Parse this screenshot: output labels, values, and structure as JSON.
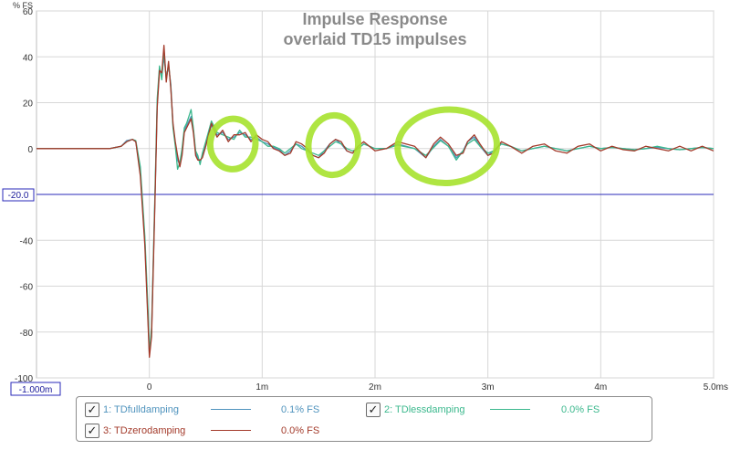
{
  "chart_data": {
    "type": "line",
    "title": "Impulse Response",
    "subtitle": "overlaid TD15 impulses",
    "ylabel": "% FS",
    "xlim": [
      -1.0,
      5.0
    ],
    "ylim": [
      -100,
      60
    ],
    "y_ticks": [
      "60",
      "40",
      "20",
      "0",
      "-20",
      "-40",
      "-60",
      "-80",
      "-100"
    ],
    "x_ticks": [
      "0",
      "1m",
      "2m",
      "3m",
      "4m",
      "5.0ms"
    ],
    "x_start_label": "-1.000m",
    "cursor_y_label": "-20.0",
    "cursor_y_value": -20,
    "grid": true,
    "legend_position": "bottom",
    "series": [
      {
        "name": "1: TDfulldamping",
        "value_label": "0.1% FS",
        "color": "#4f93bd",
        "points": [
          [
            -1.0,
            0
          ],
          [
            -0.35,
            0
          ],
          [
            -0.25,
            1
          ],
          [
            -0.2,
            3.5
          ],
          [
            -0.15,
            4
          ],
          [
            -0.12,
            3
          ],
          [
            -0.08,
            -10
          ],
          [
            -0.04,
            -40
          ],
          [
            -0.01,
            -75
          ],
          [
            0.0,
            -90
          ],
          [
            0.02,
            -80
          ],
          [
            0.05,
            -20
          ],
          [
            0.07,
            20
          ],
          [
            0.09,
            35
          ],
          [
            0.11,
            32
          ],
          [
            0.13,
            40
          ],
          [
            0.15,
            31
          ],
          [
            0.17,
            36
          ],
          [
            0.19,
            28
          ],
          [
            0.21,
            10
          ],
          [
            0.23,
            2
          ],
          [
            0.25,
            -5
          ],
          [
            0.27,
            -7
          ],
          [
            0.29,
            -2
          ],
          [
            0.31,
            8
          ],
          [
            0.33,
            10
          ],
          [
            0.35,
            12
          ],
          [
            0.37,
            14
          ],
          [
            0.39,
            8
          ],
          [
            0.41,
            -2
          ],
          [
            0.43,
            -4
          ],
          [
            0.45,
            -6
          ],
          [
            0.47,
            -3
          ],
          [
            0.5,
            2
          ],
          [
            0.55,
            10
          ],
          [
            0.6,
            6
          ],
          [
            0.65,
            7
          ],
          [
            0.7,
            4
          ],
          [
            0.75,
            5
          ],
          [
            0.8,
            7
          ],
          [
            0.85,
            6
          ],
          [
            0.9,
            4
          ],
          [
            0.95,
            5
          ],
          [
            1.0,
            3
          ],
          [
            1.05,
            2
          ],
          [
            1.1,
            0.5
          ],
          [
            1.15,
            -0.5
          ],
          [
            1.2,
            -3
          ],
          [
            1.25,
            -1
          ],
          [
            1.3,
            2
          ],
          [
            1.35,
            1
          ],
          [
            1.4,
            -1
          ],
          [
            1.45,
            -3
          ],
          [
            1.5,
            -4
          ],
          [
            1.55,
            -1
          ],
          [
            1.6,
            2
          ],
          [
            1.65,
            4
          ],
          [
            1.7,
            2
          ],
          [
            1.75,
            -1
          ],
          [
            1.8,
            -2
          ],
          [
            1.85,
            0
          ],
          [
            1.9,
            2
          ],
          [
            1.95,
            1
          ],
          [
            2.0,
            0
          ],
          [
            2.1,
            0
          ],
          [
            2.2,
            2
          ],
          [
            2.35,
            0
          ],
          [
            2.45,
            -4
          ],
          [
            2.52,
            1
          ],
          [
            2.58,
            4
          ],
          [
            2.65,
            1
          ],
          [
            2.72,
            -4
          ],
          [
            2.78,
            -1
          ],
          [
            2.82,
            3
          ],
          [
            2.88,
            5
          ],
          [
            2.93,
            1
          ],
          [
            3.0,
            -3
          ],
          [
            3.05,
            -1
          ],
          [
            3.12,
            2
          ],
          [
            3.2,
            1
          ],
          [
            3.3,
            -1
          ],
          [
            3.4,
            0
          ],
          [
            3.5,
            1
          ],
          [
            3.6,
            0
          ],
          [
            3.7,
            -1
          ],
          [
            3.8,
            0
          ],
          [
            3.9,
            1
          ],
          [
            4.0,
            0
          ],
          [
            4.1,
            0.5
          ],
          [
            4.2,
            0
          ],
          [
            4.3,
            -0.5
          ],
          [
            4.4,
            0
          ],
          [
            4.5,
            0.5
          ],
          [
            4.6,
            0
          ],
          [
            4.7,
            -0.5
          ],
          [
            4.8,
            0
          ],
          [
            4.9,
            0.5
          ],
          [
            5.0,
            0
          ]
        ]
      },
      {
        "name": "2: TDlessdamping",
        "value_label": "0.0% FS",
        "color": "#3bb88d",
        "points": [
          [
            -1.0,
            0
          ],
          [
            -0.35,
            0
          ],
          [
            -0.25,
            1
          ],
          [
            -0.2,
            3
          ],
          [
            -0.15,
            4
          ],
          [
            -0.12,
            3.5
          ],
          [
            -0.08,
            -8
          ],
          [
            -0.04,
            -38
          ],
          [
            -0.01,
            -72
          ],
          [
            0.0,
            -89
          ],
          [
            0.02,
            -78
          ],
          [
            0.05,
            -18
          ],
          [
            0.07,
            22
          ],
          [
            0.09,
            36
          ],
          [
            0.11,
            30
          ],
          [
            0.13,
            43
          ],
          [
            0.15,
            30
          ],
          [
            0.17,
            37
          ],
          [
            0.19,
            27
          ],
          [
            0.21,
            9
          ],
          [
            0.23,
            1
          ],
          [
            0.25,
            -9
          ],
          [
            0.27,
            -6
          ],
          [
            0.29,
            0
          ],
          [
            0.31,
            9
          ],
          [
            0.33,
            11
          ],
          [
            0.35,
            14
          ],
          [
            0.37,
            17
          ],
          [
            0.39,
            9
          ],
          [
            0.41,
            -1
          ],
          [
            0.43,
            -3
          ],
          [
            0.45,
            -7
          ],
          [
            0.47,
            -2
          ],
          [
            0.5,
            3
          ],
          [
            0.55,
            12
          ],
          [
            0.6,
            7
          ],
          [
            0.65,
            6
          ],
          [
            0.7,
            5
          ],
          [
            0.75,
            4
          ],
          [
            0.8,
            8
          ],
          [
            0.85,
            5
          ],
          [
            0.9,
            5
          ],
          [
            0.95,
            4
          ],
          [
            1.0,
            3
          ],
          [
            1.05,
            1
          ],
          [
            1.1,
            1
          ],
          [
            1.15,
            0
          ],
          [
            1.2,
            -2
          ],
          [
            1.25,
            0
          ],
          [
            1.3,
            2
          ],
          [
            1.35,
            0
          ],
          [
            1.4,
            -1
          ],
          [
            1.45,
            -2
          ],
          [
            1.5,
            -3
          ],
          [
            1.55,
            -1
          ],
          [
            1.6,
            1
          ],
          [
            1.65,
            3
          ],
          [
            1.7,
            2
          ],
          [
            1.75,
            0
          ],
          [
            1.8,
            -1
          ],
          [
            1.85,
            0
          ],
          [
            1.9,
            2
          ],
          [
            1.95,
            1
          ],
          [
            2.0,
            0
          ],
          [
            2.1,
            0
          ],
          [
            2.2,
            1.5
          ],
          [
            2.35,
            0
          ],
          [
            2.45,
            -3
          ],
          [
            2.52,
            0.5
          ],
          [
            2.58,
            3.5
          ],
          [
            2.65,
            1
          ],
          [
            2.72,
            -5
          ],
          [
            2.78,
            -1
          ],
          [
            2.82,
            2
          ],
          [
            2.88,
            4
          ],
          [
            2.93,
            1
          ],
          [
            3.0,
            -2
          ],
          [
            3.05,
            -1
          ],
          [
            3.12,
            2
          ],
          [
            3.2,
            1
          ],
          [
            3.3,
            -1
          ],
          [
            3.4,
            0
          ],
          [
            3.5,
            1
          ],
          [
            3.6,
            0
          ],
          [
            3.7,
            -1
          ],
          [
            3.8,
            0
          ],
          [
            3.9,
            1
          ],
          [
            4.0,
            0
          ],
          [
            4.1,
            0.5
          ],
          [
            4.2,
            0
          ],
          [
            4.3,
            -0.5
          ],
          [
            4.4,
            0
          ],
          [
            4.5,
            1
          ],
          [
            4.6,
            0
          ],
          [
            4.7,
            -0.5
          ],
          [
            4.8,
            0
          ],
          [
            4.9,
            0.5
          ],
          [
            5.0,
            0
          ]
        ]
      },
      {
        "name": "3: TDzerodamping",
        "value_label": "0.0% FS",
        "color": "#a33a2a",
        "points": [
          [
            -1.0,
            0
          ],
          [
            -0.35,
            0
          ],
          [
            -0.25,
            1
          ],
          [
            -0.2,
            3
          ],
          [
            -0.15,
            4
          ],
          [
            -0.12,
            3
          ],
          [
            -0.08,
            -12
          ],
          [
            -0.04,
            -42
          ],
          [
            -0.01,
            -78
          ],
          [
            0.0,
            -91
          ],
          [
            0.02,
            -82
          ],
          [
            0.05,
            -22
          ],
          [
            0.07,
            18
          ],
          [
            0.09,
            34
          ],
          [
            0.11,
            33
          ],
          [
            0.13,
            45
          ],
          [
            0.15,
            29
          ],
          [
            0.17,
            38
          ],
          [
            0.19,
            26
          ],
          [
            0.21,
            11
          ],
          [
            0.23,
            3
          ],
          [
            0.25,
            -3
          ],
          [
            0.27,
            -8
          ],
          [
            0.29,
            -3
          ],
          [
            0.31,
            7
          ],
          [
            0.33,
            9
          ],
          [
            0.35,
            11
          ],
          [
            0.37,
            13
          ],
          [
            0.39,
            7
          ],
          [
            0.41,
            -3
          ],
          [
            0.43,
            -5
          ],
          [
            0.45,
            -5
          ],
          [
            0.47,
            -4
          ],
          [
            0.5,
            1
          ],
          [
            0.55,
            11
          ],
          [
            0.6,
            5
          ],
          [
            0.65,
            8
          ],
          [
            0.7,
            3
          ],
          [
            0.75,
            6
          ],
          [
            0.8,
            6
          ],
          [
            0.85,
            7
          ],
          [
            0.9,
            3
          ],
          [
            0.95,
            6
          ],
          [
            1.0,
            4
          ],
          [
            1.05,
            3
          ],
          [
            1.1,
            0
          ],
          [
            1.15,
            -1
          ],
          [
            1.2,
            -3
          ],
          [
            1.25,
            -2
          ],
          [
            1.3,
            3
          ],
          [
            1.35,
            2
          ],
          [
            1.4,
            0
          ],
          [
            1.45,
            -3
          ],
          [
            1.5,
            -4
          ],
          [
            1.55,
            -2
          ],
          [
            1.6,
            2
          ],
          [
            1.65,
            4
          ],
          [
            1.7,
            3
          ],
          [
            1.75,
            -1
          ],
          [
            1.8,
            -2
          ],
          [
            1.85,
            1
          ],
          [
            1.9,
            3
          ],
          [
            1.95,
            1
          ],
          [
            2.0,
            -1
          ],
          [
            2.1,
            0
          ],
          [
            2.2,
            3
          ],
          [
            2.35,
            1
          ],
          [
            2.45,
            -4
          ],
          [
            2.52,
            2
          ],
          [
            2.58,
            5
          ],
          [
            2.65,
            2
          ],
          [
            2.72,
            -3
          ],
          [
            2.78,
            -2
          ],
          [
            2.82,
            3
          ],
          [
            2.88,
            6
          ],
          [
            2.93,
            2
          ],
          [
            3.0,
            -3
          ],
          [
            3.05,
            -2
          ],
          [
            3.12,
            3
          ],
          [
            3.2,
            1
          ],
          [
            3.3,
            -2
          ],
          [
            3.4,
            1
          ],
          [
            3.5,
            2
          ],
          [
            3.6,
            -1
          ],
          [
            3.7,
            -2
          ],
          [
            3.8,
            1
          ],
          [
            3.9,
            2
          ],
          [
            4.0,
            -1
          ],
          [
            4.1,
            1
          ],
          [
            4.2,
            -0.5
          ],
          [
            4.3,
            -1
          ],
          [
            4.4,
            1
          ],
          [
            4.5,
            0
          ],
          [
            4.6,
            -1
          ],
          [
            4.7,
            1
          ],
          [
            4.8,
            -1
          ],
          [
            4.9,
            1
          ],
          [
            5.0,
            -1
          ]
        ]
      }
    ],
    "highlight_markers_color": "#a6e22e",
    "highlight_markers_count": 3
  }
}
